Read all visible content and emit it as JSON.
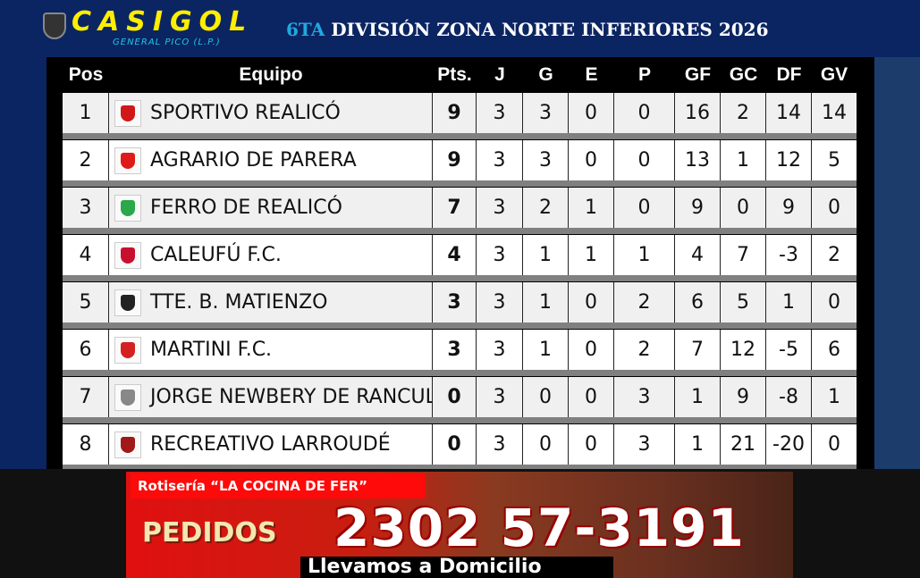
{
  "header": {
    "brand": "CASIGOL",
    "brand_sub": "GENERAL PICO (L.P.)",
    "title_highlight": "6TA",
    "title_rest": " DIVISIÓN ZONA NORTE INFERIORES 2026"
  },
  "columns": [
    "Pos",
    "Equipo",
    "Pts.",
    "J",
    "G",
    "E",
    "P",
    "GF",
    "GC",
    "DF",
    "GV"
  ],
  "rows": [
    {
      "pos": "1",
      "team": "SPORTIVO REALICÓ",
      "pts": "9",
      "j": "3",
      "g": "3",
      "e": "0",
      "p": "0",
      "gf": "16",
      "gc": "2",
      "df": "14",
      "gv": "14",
      "crest": "#d01818"
    },
    {
      "pos": "2",
      "team": "AGRARIO DE PARERA",
      "pts": "9",
      "j": "3",
      "g": "3",
      "e": "0",
      "p": "0",
      "gf": "13",
      "gc": "1",
      "df": "12",
      "gv": "5",
      "crest": "#e01a1a"
    },
    {
      "pos": "3",
      "team": "FERRO DE REALICÓ",
      "pts": "7",
      "j": "3",
      "g": "2",
      "e": "1",
      "p": "0",
      "gf": "9",
      "gc": "0",
      "df": "9",
      "gv": "0",
      "crest": "#2aa84a"
    },
    {
      "pos": "4",
      "team": "CALEUFÚ F.C.",
      "pts": "4",
      "j": "3",
      "g": "1",
      "e": "1",
      "p": "1",
      "gf": "4",
      "gc": "7",
      "df": "-3",
      "gv": "2",
      "crest": "#c8102e"
    },
    {
      "pos": "5",
      "team": "TTE. B. MATIENZO",
      "pts": "3",
      "j": "3",
      "g": "1",
      "e": "0",
      "p": "2",
      "gf": "6",
      "gc": "5",
      "df": "1",
      "gv": "0",
      "crest": "#222222"
    },
    {
      "pos": "6",
      "team": "MARTINI F.C.",
      "pts": "3",
      "j": "3",
      "g": "1",
      "e": "0",
      "p": "2",
      "gf": "7",
      "gc": "12",
      "df": "-5",
      "gv": "6",
      "crest": "#d42020"
    },
    {
      "pos": "7",
      "team": "JORGE NEWBERY DE RANCUL",
      "pts": "0",
      "j": "3",
      "g": "0",
      "e": "0",
      "p": "3",
      "gf": "1",
      "gc": "9",
      "df": "-8",
      "gv": "1",
      "crest": "#888888"
    },
    {
      "pos": "8",
      "team": "RECREATIVO LARROUDÉ",
      "pts": "0",
      "j": "3",
      "g": "0",
      "e": "0",
      "p": "3",
      "gf": "1",
      "gc": "21",
      "df": "-20",
      "gv": "0",
      "crest": "#a01818"
    }
  ],
  "ad": {
    "top": "Rotisería “LA COCINA DE FER”",
    "pedidos": "PEDIDOS",
    "phone": "2302 57-3191",
    "delivery": "Llevamos a Domicilio"
  }
}
